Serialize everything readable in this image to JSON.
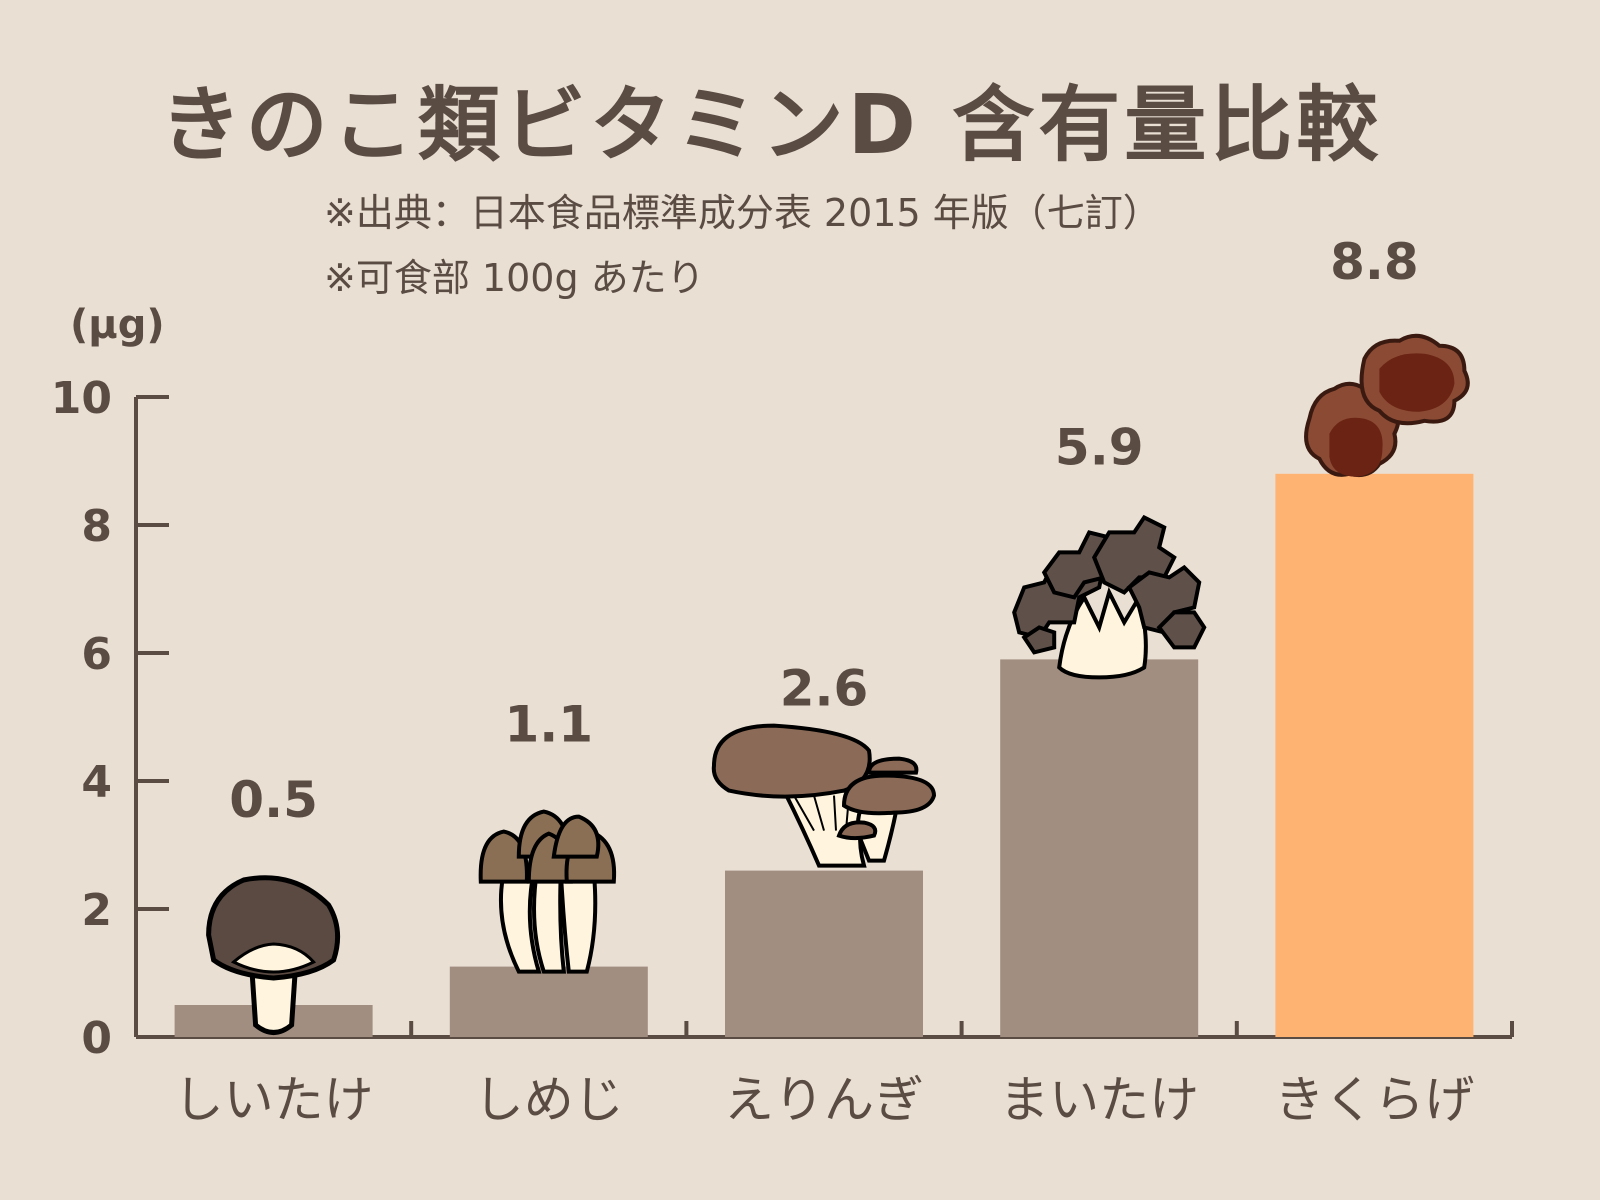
{
  "chart_data": {
    "type": "bar",
    "title": "きのこ類ビタミンD 含有量比較",
    "notes": [
      "※出典：日本食品標準成分表 2015 年版（七訂）",
      "※可食部 100g あたり"
    ],
    "ylabel": "(μg)",
    "xlabel": "",
    "ylim": [
      0,
      10
    ],
    "yticks": [
      0,
      2,
      4,
      6,
      8,
      10
    ],
    "grid": false,
    "categories": [
      "しいたけ",
      "しめじ",
      "えりんぎ",
      "まいたけ",
      "きくらげ"
    ],
    "values": [
      0.5,
      1.1,
      2.6,
      5.9,
      8.8
    ],
    "value_labels": [
      "0.5",
      "1.1",
      "2.6",
      "5.9",
      "8.8"
    ],
    "icons": [
      "shiitake-icon",
      "shimeji-icon",
      "eringi-icon",
      "maitake-icon",
      "kikurage-icon"
    ],
    "colors": {
      "background": "#e9dfd3",
      "bar": "#a18e80",
      "highlight_bar": "#ffb373",
      "text": "#5a4c43",
      "axis": "#5a4c43"
    },
    "highlight_index": 4
  }
}
